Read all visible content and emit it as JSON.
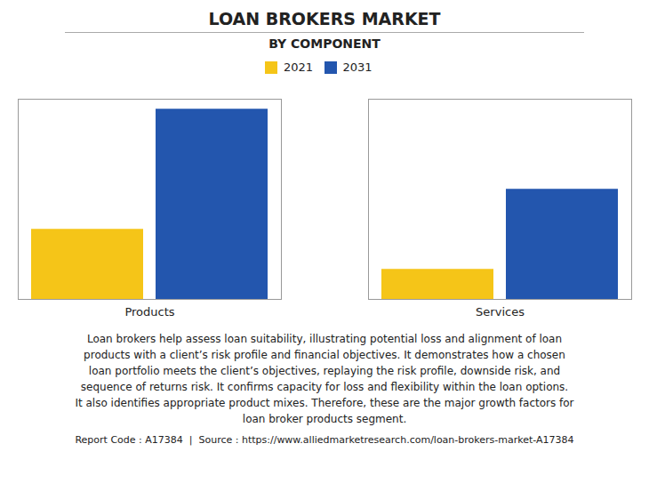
{
  "chart_data": {
    "type": "bar",
    "title": "LOAN BROKERS MARKET",
    "subtitle": "BY COMPONENT",
    "categories": [
      "Products",
      "Services"
    ],
    "series": [
      {
        "name": "2021",
        "color": "#F5C518",
        "values": [
          3.5,
          1.5
        ]
      },
      {
        "name": "2031",
        "color": "#2356AE",
        "values": [
          9.5,
          5.5
        ]
      }
    ],
    "ylim": [
      0,
      10
    ],
    "grid": false,
    "legend": "top",
    "tick_labels": "x",
    "annotations": [
      "Loan brokers help assess loan suitability, illustrating potential loss and alignment of loan\nproducts with a client’s risk profile and financial objectives. It demonstrates how a chosen\nloan portfolio meets the client’s objectives, replaying the risk profile, downside risk, and\nsequence of returns risk. It confirms capacity for loss and flexibility within the loan options.\nIt also identifies appropriate product mixes. Therefore, these are the major growth factors for\nloan broker products segment.",
      "Report Code : A17384  |  Source : https://www.alliedmarketresearch.com/loan-brokers-market-A17384"
    ]
  }
}
